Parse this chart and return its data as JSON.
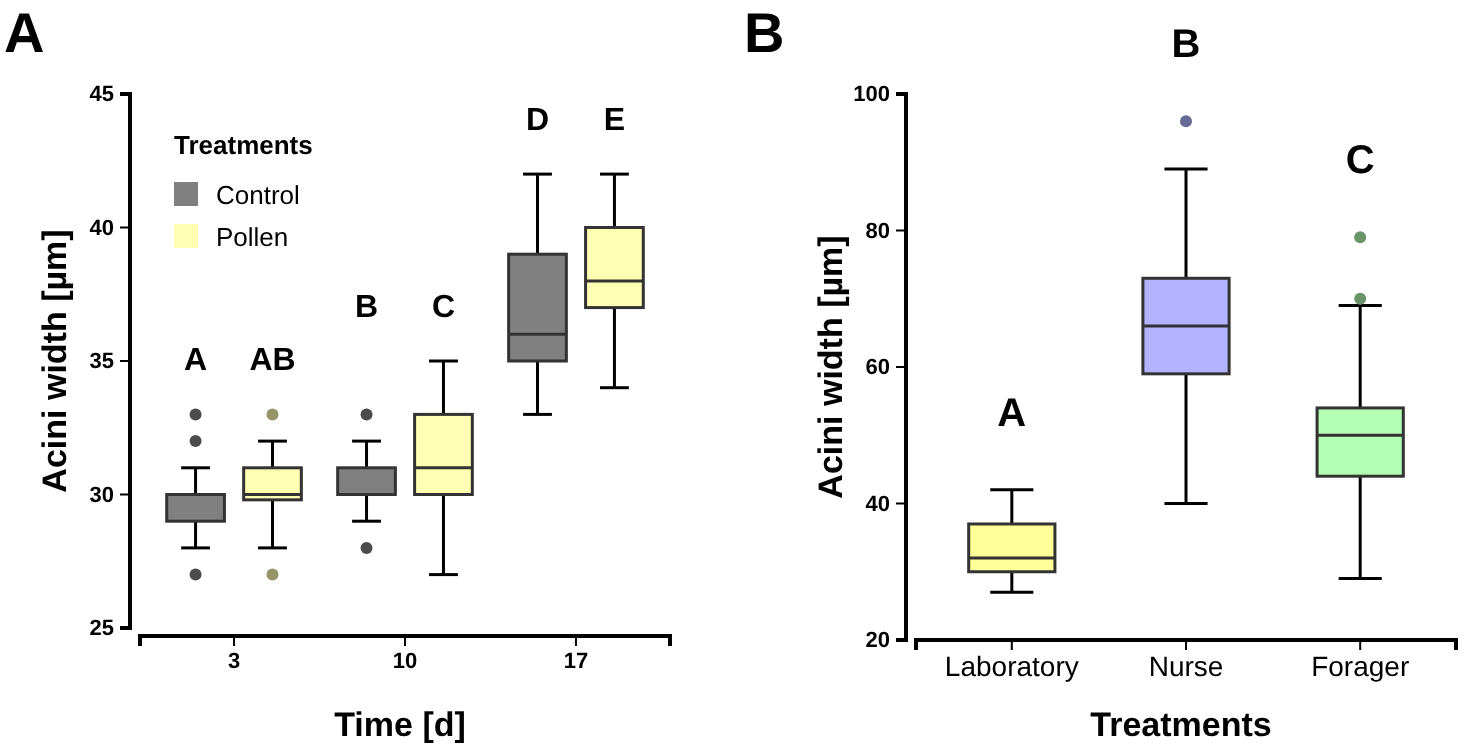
{
  "chart_data": [
    {
      "type": "box",
      "title": "A",
      "xlabel": "Time [d]",
      "ylabel": "Acini width [µm]",
      "legend_title": "Treatments",
      "legend": "top left",
      "categories": [
        "3",
        "10",
        "17"
      ],
      "ylim": [
        25,
        45
      ],
      "yticks": [
        25,
        30,
        35,
        40,
        45
      ],
      "series": [
        {
          "name": "Control",
          "color": "#808080",
          "boxes": [
            {
              "low": 28,
              "q1": 29,
              "median": 30,
              "q3": 30,
              "high": 31,
              "outliers": [
                27,
                32,
                33
              ]
            },
            {
              "low": 29,
              "q1": 30,
              "median": 30,
              "q3": 31,
              "high": 32,
              "outliers": [
                28,
                33
              ]
            },
            {
              "low": 33,
              "q1": 35,
              "median": 36,
              "q3": 39,
              "high": 42
            }
          ]
        },
        {
          "name": "Pollen",
          "color": "#ffffb3",
          "boxes": [
            {
              "low": 28,
              "q1": 29.8,
              "median": 30,
              "q3": 31,
              "high": 32,
              "outliers": [
                27,
                33
              ]
            },
            {
              "low": 27,
              "q1": 30,
              "median": 31,
              "q3": 33,
              "high": 35
            },
            {
              "low": 34,
              "q1": 37,
              "median": 38,
              "q3": 40,
              "high": 42
            }
          ]
        }
      ],
      "annotations": [
        "A",
        "AB",
        "B",
        "C",
        "D",
        "E"
      ]
    },
    {
      "type": "box",
      "title": "B",
      "xlabel": "Treatments",
      "ylabel": "Acini width [µm]",
      "categories": [
        "Laboratory",
        "Nurse",
        "Forager"
      ],
      "ylim": [
        20,
        100
      ],
      "yticks": [
        20,
        40,
        60,
        80,
        100
      ],
      "colors": [
        "#ffff99",
        "#b3b3ff",
        "#b3ffb3"
      ],
      "boxes": [
        {
          "low": 27,
          "q1": 30,
          "median": 32,
          "q3": 37,
          "high": 42
        },
        {
          "low": 40,
          "q1": 59,
          "median": 66,
          "q3": 73,
          "high": 89,
          "outliers": [
            96
          ]
        },
        {
          "low": 29,
          "q1": 44,
          "median": 50,
          "q3": 54,
          "high": 69,
          "outliers": [
            70,
            79
          ]
        }
      ],
      "annotations": [
        "A",
        "B",
        "C"
      ]
    }
  ]
}
